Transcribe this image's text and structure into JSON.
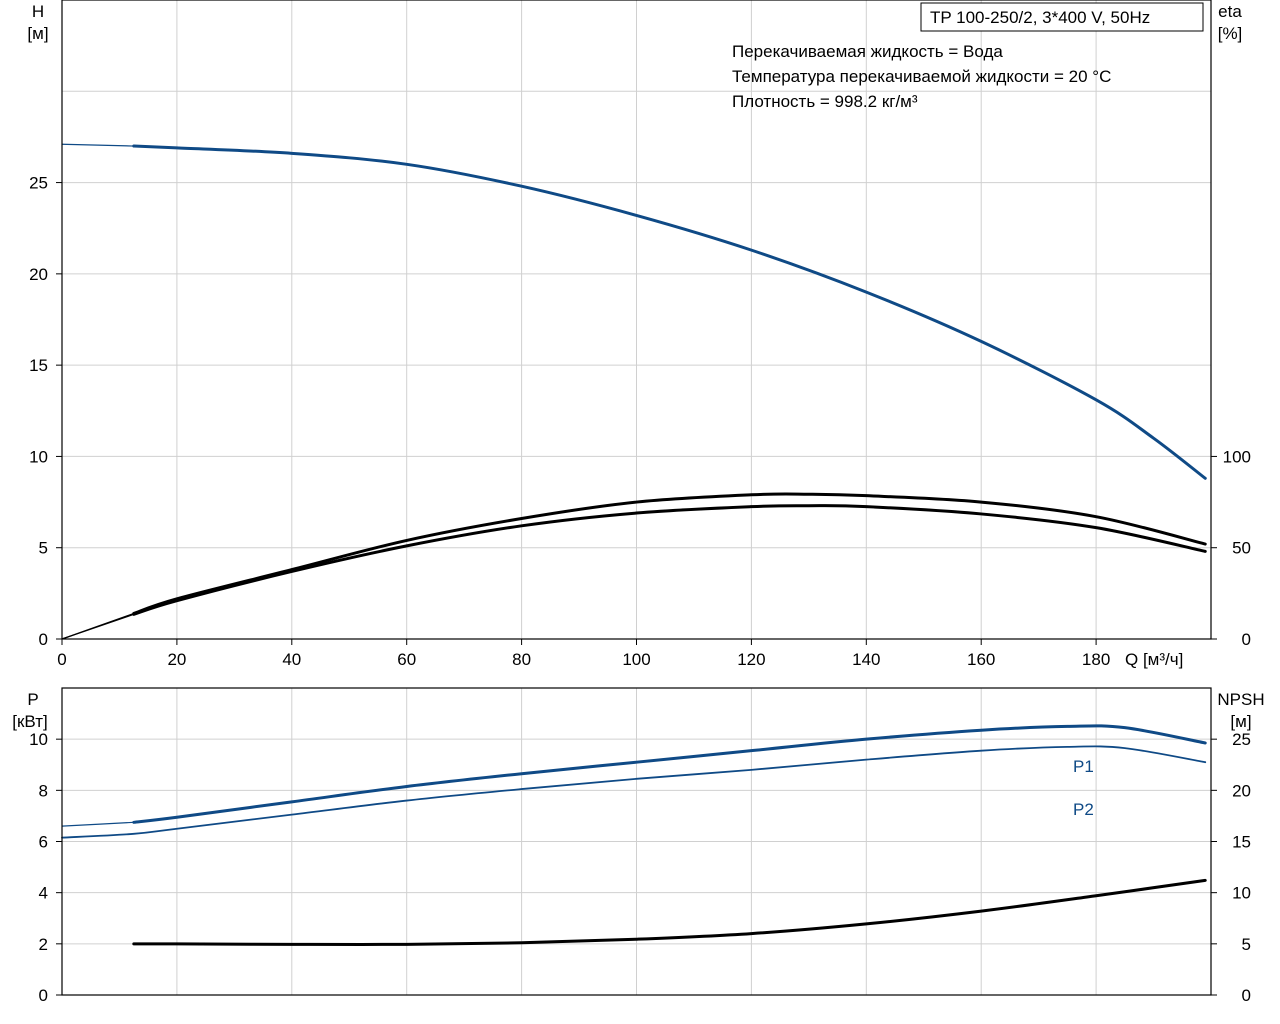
{
  "chart_data": [
    {
      "type": "line",
      "panel": "head-efficiency",
      "title": "TP 100-250/2, 3*400 V, 50Hz",
      "info_lines": [
        "Перекачиваемая жидкость = Вода",
        "Температура перекачиваемой жидкости = 20 °C",
        "Плотность = 998.2 кг/м³"
      ],
      "xlabel": "Q [м³/ч]",
      "xlim": [
        0,
        200
      ],
      "x_ticks": [
        0,
        20,
        40,
        60,
        80,
        100,
        120,
        140,
        160,
        180
      ],
      "y_left": {
        "label_top": "H",
        "label_unit": "[м]",
        "ylim": [
          0,
          35
        ],
        "ticks": [
          0,
          5,
          10,
          15,
          20,
          25
        ]
      },
      "y_right": {
        "label_top": "eta",
        "label_unit": "[%]",
        "ylim": [
          0,
          350
        ],
        "ticks": [
          0,
          50,
          100
        ]
      },
      "grid": true,
      "series": [
        {
          "color": "#0f4a86",
          "axis": "left",
          "x": [
            0,
            12.5,
            20,
            40,
            60,
            80,
            100,
            120,
            140,
            160,
            180,
            190,
            199
          ],
          "values": [
            27.1,
            27.0,
            26.9,
            26.6,
            26.0,
            24.8,
            23.2,
            21.3,
            19.0,
            16.3,
            13.1,
            11.0,
            8.8
          ],
          "thin_until": 12.5
        },
        {
          "color": "#000000",
          "axis": "right",
          "x": [
            0,
            12.5,
            20,
            40,
            60,
            80,
            100,
            120,
            130,
            140,
            160,
            180,
            199
          ],
          "values": [
            0,
            14,
            22,
            38,
            54,
            66,
            75,
            79,
            79.3,
            78.5,
            75,
            67,
            52
          ],
          "thin_until": 12.5
        },
        {
          "color": "#000000",
          "axis": "right",
          "x": [
            0,
            12.5,
            20,
            40,
            60,
            80,
            100,
            120,
            130,
            140,
            160,
            180,
            199
          ],
          "values": [
            0,
            13.5,
            21,
            37,
            51,
            62,
            69,
            72.5,
            73,
            72.5,
            68.5,
            61,
            48
          ],
          "thin_until": 12.5
        }
      ]
    },
    {
      "type": "line",
      "panel": "power-npsh",
      "xlim": [
        0,
        200
      ],
      "y_left": {
        "label_top": "P",
        "label_unit": "[кВт]",
        "ylim": [
          0,
          12
        ],
        "ticks": [
          0,
          2,
          4,
          6,
          8,
          10
        ]
      },
      "y_right": {
        "label_top": "NPSH",
        "label_unit": "[м]",
        "ylim": [
          0,
          30
        ],
        "ticks": [
          0,
          5,
          10,
          15,
          20,
          25
        ]
      },
      "grid": true,
      "series": [
        {
          "name": "P1",
          "color": "#0f4a86",
          "axis": "left",
          "x": [
            0,
            12.5,
            20,
            40,
            60,
            80,
            100,
            120,
            140,
            160,
            175,
            185,
            199
          ],
          "values": [
            6.6,
            6.75,
            6.95,
            7.55,
            8.15,
            8.65,
            9.1,
            9.55,
            10.0,
            10.35,
            10.5,
            10.45,
            9.85
          ],
          "thin_until": 12.5
        },
        {
          "name": "P2",
          "color": "#0f4a86",
          "axis": "left",
          "x": [
            0,
            12.5,
            20,
            40,
            60,
            80,
            100,
            120,
            140,
            160,
            175,
            185,
            199
          ],
          "values": [
            6.15,
            6.3,
            6.5,
            7.05,
            7.6,
            8.05,
            8.45,
            8.8,
            9.2,
            9.55,
            9.7,
            9.65,
            9.1
          ]
        },
        {
          "color": "#000000",
          "axis": "right",
          "x": [
            12.5,
            20,
            40,
            60,
            80,
            100,
            120,
            140,
            160,
            180,
            199
          ],
          "values": [
            5.0,
            5.0,
            4.95,
            4.95,
            5.1,
            5.45,
            6.0,
            6.95,
            8.2,
            9.7,
            11.2
          ]
        }
      ]
    }
  ]
}
